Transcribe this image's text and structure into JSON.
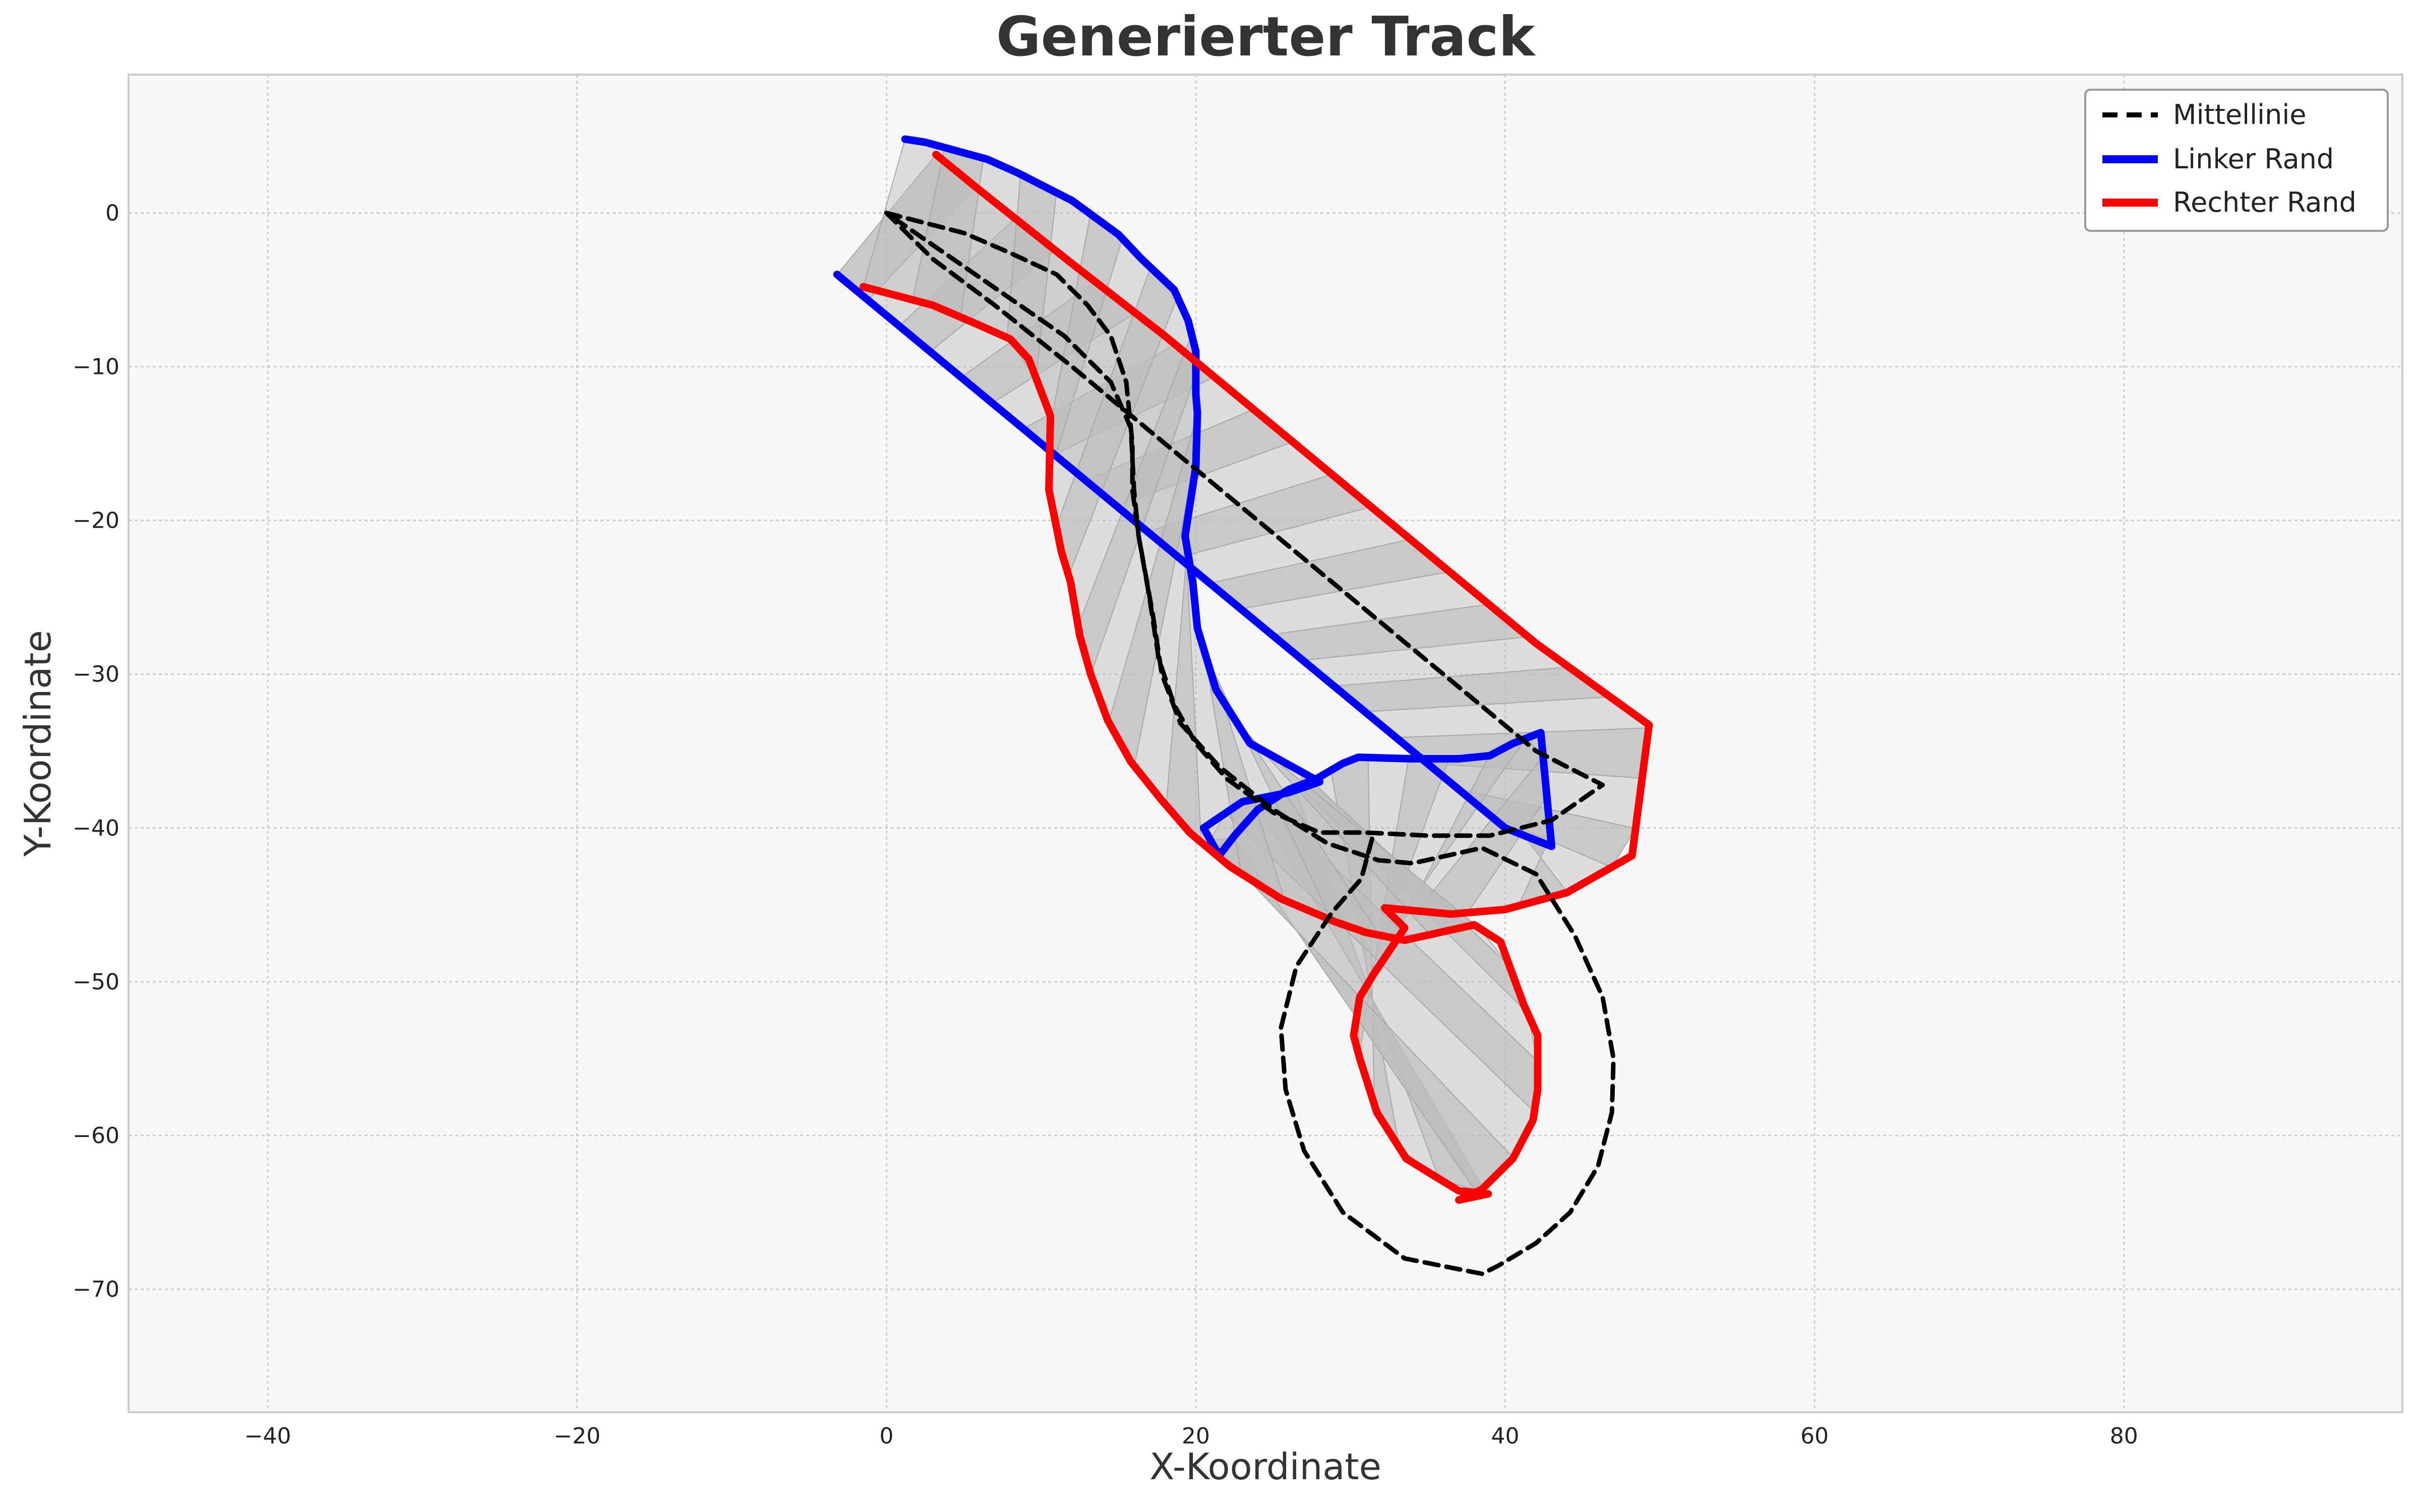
{
  "chart_data": {
    "type": "line",
    "title": "Generierter Track",
    "xlabel": "X-Koordinate",
    "ylabel": "Y-Koordinate",
    "xlim": [
      -49,
      98
    ],
    "ylim": [
      -78,
      9
    ],
    "xticks": [
      -40,
      -20,
      0,
      20,
      40,
      60,
      80
    ],
    "yticks": [
      0,
      -10,
      -20,
      -30,
      -40,
      -50,
      -60,
      -70
    ],
    "xtick_labels": [
      "−40",
      "−20",
      "0",
      "20",
      "40",
      "60",
      "80"
    ],
    "ytick_labels": [
      "0",
      "−10",
      "−20",
      "−30",
      "−40",
      "−50",
      "−60",
      "−70"
    ],
    "grid": true,
    "legend_position": "top-right",
    "track_fill_color": "#bdbdbd",
    "plot_background": "#f8f8f8",
    "series": [
      {
        "name": "Mittellinie",
        "color": "#000000",
        "style": "dashed",
        "points": [
          [
            0,
            0
          ],
          [
            5,
            -1.3
          ],
          [
            8,
            -2.6
          ],
          [
            11,
            -4
          ],
          [
            13,
            -6
          ],
          [
            14.5,
            -8
          ],
          [
            15.5,
            -11
          ],
          [
            15.9,
            -15
          ],
          [
            15.9,
            -18
          ],
          [
            16.3,
            -21
          ],
          [
            17,
            -25
          ],
          [
            17.6,
            -29
          ],
          [
            18.6,
            -32
          ],
          [
            20,
            -34.5
          ],
          [
            22,
            -36.8
          ],
          [
            25,
            -39
          ],
          [
            28,
            -40.3
          ],
          [
            31,
            -40.3
          ],
          [
            35,
            -40.5
          ],
          [
            39,
            -40.5
          ],
          [
            43,
            -39.5
          ],
          [
            46.3,
            -37.2
          ],
          [
            42,
            -35
          ],
          [
            36,
            -30
          ],
          [
            30,
            -25
          ],
          [
            24,
            -20
          ],
          [
            18,
            -15
          ],
          [
            12,
            -10
          ],
          [
            7,
            -6
          ],
          [
            3,
            -3
          ],
          [
            0,
            0
          ],
          [
            11.5,
            -8
          ],
          [
            14.5,
            -11
          ],
          [
            15.8,
            -14
          ],
          [
            16,
            -18
          ],
          [
            16.3,
            -21
          ],
          [
            17.2,
            -26
          ],
          [
            17.8,
            -30
          ],
          [
            19,
            -33.2
          ],
          [
            21.5,
            -36
          ],
          [
            25,
            -38.8
          ],
          [
            28.5,
            -41
          ],
          [
            31.8,
            -42.1
          ],
          [
            34,
            -42.3
          ],
          [
            38.5,
            -41.3
          ],
          [
            42,
            -43
          ],
          [
            44.5,
            -47
          ],
          [
            46.3,
            -51
          ],
          [
            47,
            -55
          ],
          [
            46.9,
            -58.5
          ],
          [
            46,
            -62
          ],
          [
            44.2,
            -65
          ],
          [
            42,
            -67
          ],
          [
            39.5,
            -68.5
          ],
          [
            38.5,
            -69
          ],
          [
            33.5,
            -68
          ],
          [
            29.5,
            -65
          ],
          [
            27,
            -61
          ],
          [
            25.8,
            -57
          ],
          [
            25.5,
            -53
          ],
          [
            26.5,
            -49
          ],
          [
            28.8,
            -45.5
          ],
          [
            30.7,
            -43.3
          ],
          [
            31.5,
            -40.3
          ]
        ]
      },
      {
        "name": "Linker Rand",
        "color": "#0000ff",
        "style": "solid",
        "points": [
          [
            -3.2,
            -4
          ],
          [
            4,
            -10
          ],
          [
            10,
            -15
          ],
          [
            16,
            -20
          ],
          [
            22,
            -25
          ],
          [
            28,
            -30
          ],
          [
            34,
            -35
          ],
          [
            40,
            -40
          ],
          [
            43,
            -41.2
          ],
          [
            42.3,
            -33.8
          ],
          [
            40.5,
            -34.5
          ],
          [
            39,
            -35.3
          ],
          [
            37,
            -35.5
          ],
          [
            34,
            -35.5
          ],
          [
            30.5,
            -35.4
          ],
          [
            29.5,
            -35.8
          ],
          [
            27.8,
            -36.8
          ],
          [
            26,
            -37.5
          ],
          [
            24,
            -38.8
          ],
          [
            22.5,
            -40.5
          ],
          [
            21.5,
            -41.8
          ],
          [
            20.5,
            -40
          ],
          [
            23,
            -38.3
          ],
          [
            26,
            -37.7
          ],
          [
            28,
            -37
          ],
          [
            23.5,
            -34.5
          ],
          [
            21.3,
            -31
          ],
          [
            20.1,
            -27
          ],
          [
            19.8,
            -24
          ],
          [
            19.3,
            -21
          ],
          [
            20,
            -16.5
          ],
          [
            20.1,
            -13
          ],
          [
            20,
            -11.8
          ],
          [
            20,
            -9
          ],
          [
            19.5,
            -7
          ],
          [
            18.6,
            -5
          ],
          [
            16.5,
            -3
          ],
          [
            15,
            -1.4
          ],
          [
            12,
            0.8
          ],
          [
            8.5,
            2.6
          ],
          [
            6.5,
            3.5
          ],
          [
            2.5,
            4.6
          ],
          [
            1.2,
            4.8
          ],
          [
            1.2,
            4.8
          ]
        ]
      },
      {
        "name": "Rechter Rand",
        "color": "#ff0000",
        "style": "solid",
        "points": [
          [
            -1.5,
            -4.8
          ],
          [
            3,
            -6
          ],
          [
            6,
            -7.3
          ],
          [
            8,
            -8.2
          ],
          [
            9.2,
            -9.5
          ],
          [
            10.6,
            -13.2
          ],
          [
            10.5,
            -18
          ],
          [
            11.3,
            -22
          ],
          [
            11.9,
            -24
          ],
          [
            12.5,
            -27.5
          ],
          [
            13.2,
            -30
          ],
          [
            14.3,
            -33
          ],
          [
            15.8,
            -35.7
          ],
          [
            17.8,
            -38.2
          ],
          [
            19.6,
            -40.3
          ],
          [
            22.2,
            -42.5
          ],
          [
            25.5,
            -44.6
          ],
          [
            29,
            -46.1
          ],
          [
            31,
            -46.8
          ],
          [
            33.5,
            -47.3
          ],
          [
            38,
            -46.3
          ],
          [
            39.7,
            -47.4
          ],
          [
            41.2,
            -51.5
          ],
          [
            42.1,
            -53.5
          ],
          [
            42.1,
            -57
          ],
          [
            41.8,
            -59
          ],
          [
            40.5,
            -61.5
          ],
          [
            38.5,
            -63.5
          ],
          [
            37,
            -64.2
          ],
          [
            38.9,
            -63.8
          ],
          [
            37,
            -63.6
          ],
          [
            35.2,
            -62.5
          ],
          [
            33.6,
            -61.5
          ],
          [
            31.7,
            -58.5
          ],
          [
            30.6,
            -55
          ],
          [
            30.2,
            -53.5
          ],
          [
            30.6,
            -51
          ],
          [
            31.5,
            -49.5
          ],
          [
            33.5,
            -46.5
          ],
          [
            32.2,
            -45.2
          ],
          [
            36.5,
            -45.6
          ],
          [
            40,
            -45.3
          ],
          [
            44,
            -44.2
          ],
          [
            48.2,
            -41.8
          ],
          [
            49.3,
            -33.3
          ],
          [
            42,
            -28
          ],
          [
            36,
            -23
          ],
          [
            30,
            -18
          ],
          [
            24,
            -13
          ],
          [
            18,
            -8
          ],
          [
            12,
            -3.3
          ],
          [
            6,
            1.5
          ],
          [
            3.2,
            3.8
          ]
        ]
      }
    ]
  },
  "legend": {
    "items": [
      {
        "label": "Mittellinie",
        "color": "#000000",
        "style": "dashed"
      },
      {
        "label": "Linker Rand",
        "color": "#0000ff",
        "style": "solid"
      },
      {
        "label": "Rechter Rand",
        "color": "#ff0000",
        "style": "solid"
      }
    ]
  }
}
